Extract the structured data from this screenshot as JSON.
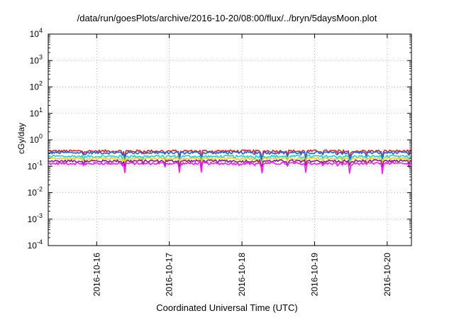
{
  "chart_data": {
    "type": "line",
    "title": "/data/run/goesPlots/archive/2016-10-20/08:00/flux/../bryn/5daysMoon.plot",
    "xlabel": "Coordinated Universal Time (UTC)",
    "ylabel": "cGy/day",
    "yscale": "log",
    "ylim": [
      0.0001,
      10000
    ],
    "xlim": [
      "2016-10-15 08:00",
      "2016-10-20 08:00"
    ],
    "grid": true,
    "y_ticks": [
      {
        "base": "10",
        "exp": "-4"
      },
      {
        "base": "10",
        "exp": "-3"
      },
      {
        "base": "10",
        "exp": "-2"
      },
      {
        "base": "10",
        "exp": "-1"
      },
      {
        "base": "10",
        "exp": "0"
      },
      {
        "base": "10",
        "exp": "1"
      },
      {
        "base": "10",
        "exp": "2"
      },
      {
        "base": "10",
        "exp": "3"
      },
      {
        "base": "10",
        "exp": "4"
      }
    ],
    "x_ticks": [
      "2016-10-16",
      "2016-10-17",
      "2016-10-18",
      "2016-10-19",
      "2016-10-20"
    ],
    "series": [
      {
        "color": "#e0202a",
        "level": 0.38,
        "dip": 0.55
      },
      {
        "color": "#2060e0",
        "level": 0.33,
        "dip": 0.5
      },
      {
        "color": "#20d0d0",
        "level": 0.24,
        "dip": 0.6
      },
      {
        "color": "#e8d020",
        "level": 0.2,
        "dip": 0.65
      },
      {
        "color": "#9010a0",
        "level": 0.16,
        "dip": 0.65
      },
      {
        "color": "#ff10ff",
        "level": 0.13,
        "dip": 0.45
      }
    ]
  }
}
